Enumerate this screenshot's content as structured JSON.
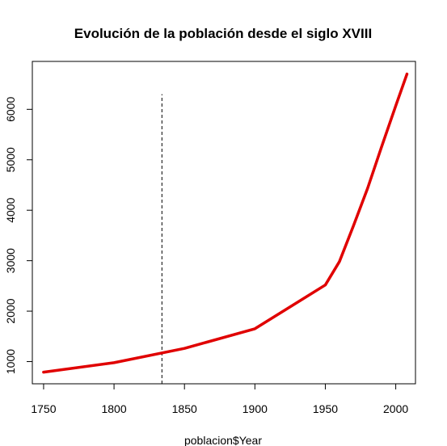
{
  "chart_data": {
    "type": "line",
    "title": "Evolución de la población desde el siglo XVIII",
    "xlabel": "poblacion$Year",
    "ylabel": "",
    "xlim": [
      1742,
      2014
    ],
    "ylim": [
      560,
      6950
    ],
    "x_ticks": [
      1750,
      1800,
      1850,
      1900,
      1950,
      2000
    ],
    "x_tick_labels": [
      "1750",
      "1800",
      "1850",
      "1900",
      "1950",
      "2000"
    ],
    "y_ticks": [
      1000,
      2000,
      3000,
      4000,
      5000,
      6000
    ],
    "y_tick_labels": [
      "1000",
      "2000",
      "3000",
      "4000",
      "5000",
      "6000"
    ],
    "grid": false,
    "legend": "none",
    "series": [
      {
        "color": "#e00000",
        "x": [
          1750,
          1800,
          1850,
          1900,
          1950,
          1960,
          1970,
          1980,
          1990,
          2000,
          2008
        ],
        "y": [
          791,
          978,
          1262,
          1650,
          2519,
          2982,
          3692,
          4435,
          5263,
          6070,
          6700
        ]
      }
    ],
    "reference_line": {
      "x": 1834,
      "y_from": 560,
      "y_to": 6300,
      "style": "dashed",
      "color": "#000000"
    }
  }
}
